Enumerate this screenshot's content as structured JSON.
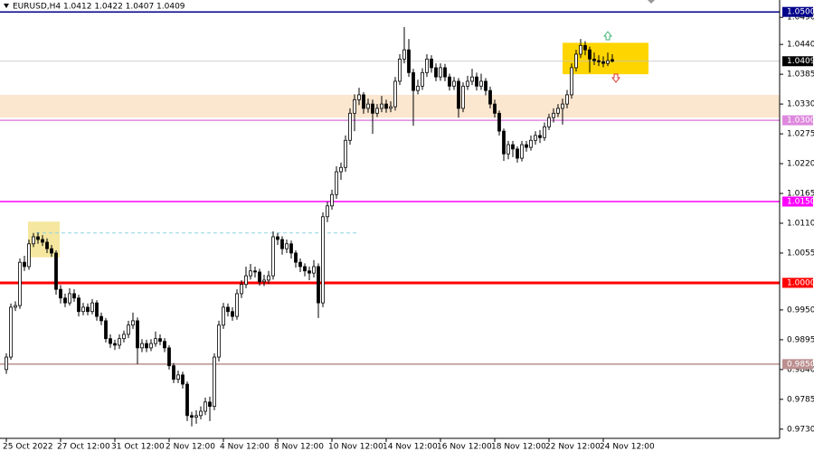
{
  "chart_data": {
    "type": "candlestick",
    "title": "EURUSD,H4  1.0412 1.0422 1.0407 1.0409",
    "ylim": [
      0.9713,
      1.0522
    ],
    "yticks": [
      {
        "value": 1.049,
        "label": "1.0490"
      },
      {
        "value": 1.044,
        "label": "1.0440"
      },
      {
        "value": 1.0385,
        "label": "1.0385"
      },
      {
        "value": 1.033,
        "label": "1.0330"
      },
      {
        "value": 1.0275,
        "label": "1.0275"
      },
      {
        "value": 1.022,
        "label": "1.0220"
      },
      {
        "value": 1.0165,
        "label": "1.0165"
      },
      {
        "value": 1.011,
        "label": "1.0110"
      },
      {
        "value": 1.0055,
        "label": "1.0055"
      },
      {
        "value": 0.995,
        "label": "0.9950"
      },
      {
        "value": 0.9895,
        "label": "0.9895"
      },
      {
        "value": 0.984,
        "label": "0.9840"
      },
      {
        "value": 0.9785,
        "label": "0.9785"
      },
      {
        "value": 0.973,
        "label": "0.9730"
      }
    ],
    "categories": [
      "25 Oct 2022",
      null,
      null,
      null,
      null,
      null,
      null,
      null,
      null,
      null,
      null,
      null,
      "27 Oct 12:00",
      null,
      null,
      null,
      null,
      null,
      null,
      null,
      null,
      null,
      null,
      null,
      "31 Oct 12:00",
      null,
      null,
      null,
      null,
      null,
      null,
      null,
      null,
      null,
      null,
      null,
      "2 Nov 12:00",
      null,
      null,
      null,
      null,
      null,
      null,
      null,
      null,
      null,
      null,
      null,
      "4 Nov 12:00",
      null,
      null,
      null,
      null,
      null,
      null,
      null,
      null,
      null,
      null,
      null,
      "8 Nov 12:00",
      null,
      null,
      null,
      null,
      null,
      null,
      null,
      null,
      null,
      null,
      null,
      "10 Nov 12:00",
      null,
      null,
      null,
      null,
      null,
      null,
      null,
      null,
      null,
      null,
      null,
      "14 Nov 12:00",
      null,
      null,
      null,
      null,
      null,
      null,
      null,
      null,
      null,
      null,
      null,
      "16 Nov 12:00",
      null,
      null,
      null,
      null,
      null,
      null,
      null,
      null,
      null,
      null,
      null,
      "18 Nov 12:00",
      null,
      null,
      null,
      null,
      null,
      null,
      null,
      null,
      null,
      null,
      null,
      "22 Nov 12:00",
      null,
      null,
      null,
      null,
      null,
      null,
      null,
      null,
      null,
      null,
      null,
      "24 Nov 12:00",
      null,
      null
    ],
    "ohlc": [
      [
        0.984,
        0.987,
        0.9832,
        0.9863
      ],
      [
        0.9863,
        0.9962,
        0.9858,
        0.9955
      ],
      [
        0.9955,
        0.9966,
        0.9948,
        0.9958
      ],
      [
        0.9958,
        1.0045,
        0.9952,
        1.0038
      ],
      [
        1.0038,
        1.005,
        1.0022,
        1.003
      ],
      [
        1.003,
        1.008,
        1.0024,
        1.0072
      ],
      [
        1.0072,
        1.0092,
        1.0066,
        1.0085
      ],
      [
        1.0085,
        1.0093,
        1.0072,
        1.008
      ],
      [
        1.008,
        1.0088,
        1.0068,
        1.0075
      ],
      [
        1.0075,
        1.0082,
        1.0055,
        1.0063
      ],
      [
        1.0063,
        1.007,
        1.0048,
        1.0055
      ],
      [
        1.0055,
        1.006,
        0.9978,
        0.9988
      ],
      [
        0.9988,
        0.9996,
        0.9962,
        0.9972
      ],
      [
        0.9972,
        0.998,
        0.9955,
        0.9963
      ],
      [
        0.9963,
        0.999,
        0.9958,
        0.998
      ],
      [
        0.998,
        0.9988,
        0.9965,
        0.9972
      ],
      [
        0.9972,
        0.9978,
        0.9938,
        0.9947
      ],
      [
        0.9947,
        0.9963,
        0.994,
        0.9955
      ],
      [
        0.9955,
        0.9962,
        0.994,
        0.9947
      ],
      [
        0.9947,
        0.997,
        0.9942,
        0.9963
      ],
      [
        0.9963,
        0.9968,
        0.993,
        0.9938
      ],
      [
        0.9938,
        0.9945,
        0.9922,
        0.993
      ],
      [
        0.993,
        0.9935,
        0.989,
        0.9897
      ],
      [
        0.9897,
        0.9905,
        0.988,
        0.9888
      ],
      [
        0.9888,
        0.9895,
        0.9876,
        0.9885
      ],
      [
        0.9885,
        0.9905,
        0.9878,
        0.9897
      ],
      [
        0.9897,
        0.9912,
        0.989,
        0.9905
      ],
      [
        0.9905,
        0.993,
        0.9898,
        0.9922
      ],
      [
        0.9922,
        0.9945,
        0.9915,
        0.993
      ],
      [
        0.993,
        0.9936,
        0.985,
        0.988
      ],
      [
        0.988,
        0.9896,
        0.9872,
        0.9888
      ],
      [
        0.9888,
        0.9895,
        0.9872,
        0.988
      ],
      [
        0.988,
        0.9896,
        0.9874,
        0.9888
      ],
      [
        0.9888,
        0.991,
        0.9882,
        0.9897
      ],
      [
        0.9897,
        0.9905,
        0.9885,
        0.9892
      ],
      [
        0.9892,
        0.9898,
        0.9872,
        0.988
      ],
      [
        0.988,
        0.9885,
        0.984,
        0.9847
      ],
      [
        0.9847,
        0.9852,
        0.9815,
        0.9822
      ],
      [
        0.9822,
        0.9838,
        0.9815,
        0.983
      ],
      [
        0.983,
        0.9836,
        0.9805,
        0.9813
      ],
      [
        0.9813,
        0.9818,
        0.9745,
        0.9755
      ],
      [
        0.9755,
        0.9762,
        0.9735,
        0.9752
      ],
      [
        0.9752,
        0.9765,
        0.974,
        0.9755
      ],
      [
        0.9755,
        0.9772,
        0.9748,
        0.9763
      ],
      [
        0.9763,
        0.9788,
        0.9756,
        0.978
      ],
      [
        0.978,
        0.979,
        0.9745,
        0.9772
      ],
      [
        0.9772,
        0.987,
        0.9765,
        0.9863
      ],
      [
        0.9863,
        0.993,
        0.9855,
        0.9922
      ],
      [
        0.9922,
        0.9963,
        0.9915,
        0.9955
      ],
      [
        0.9955,
        0.9962,
        0.9938,
        0.9947
      ],
      [
        0.9947,
        0.9955,
        0.993,
        0.9938
      ],
      [
        0.9938,
        0.9988,
        0.9932,
        0.998
      ],
      [
        0.998,
        1.0005,
        0.9972,
        0.9997
      ],
      [
        0.9997,
        1.003,
        0.999,
        1.0013
      ],
      [
        1.0013,
        1.0035,
        1.0006,
        1.0022
      ],
      [
        1.0022,
        1.003,
        1.001,
        1.002
      ],
      [
        1.002,
        1.0026,
        0.9995,
        1.0002
      ],
      [
        1.0002,
        1.0015,
        0.9994,
        1.0005
      ],
      [
        1.0005,
        1.0022,
        0.9998,
        1.0013
      ],
      [
        1.0013,
        1.0095,
        1.0006,
        1.0085
      ],
      [
        1.0085,
        1.0092,
        1.007,
        1.008
      ],
      [
        1.008,
        1.0086,
        1.0052,
        1.0063
      ],
      [
        1.0063,
        1.008,
        1.0055,
        1.0072
      ],
      [
        1.0072,
        1.0078,
        1.0045,
        1.0055
      ],
      [
        1.0055,
        1.006,
        1.0028,
        1.0038
      ],
      [
        1.0038,
        1.0045,
        1.002,
        1.003
      ],
      [
        1.003,
        1.0036,
        1.0012,
        1.0022
      ],
      [
        1.0022,
        1.003,
        1.0005,
        1.0018
      ],
      [
        1.0018,
        1.0042,
        1.001,
        1.003
      ],
      [
        1.003,
        1.0036,
        0.9935,
        0.9963
      ],
      [
        0.9963,
        1.013,
        0.9955,
        1.0122
      ],
      [
        1.0122,
        1.015,
        1.0112,
        1.0142
      ],
      [
        1.0142,
        1.0172,
        1.0135,
        1.0163
      ],
      [
        1.0163,
        1.0215,
        1.0155,
        1.0205
      ],
      [
        1.0205,
        1.0222,
        1.019,
        1.0213
      ],
      [
        1.0213,
        1.0272,
        1.0205,
        1.0263
      ],
      [
        1.0263,
        1.0322,
        1.0255,
        1.0313
      ],
      [
        1.0313,
        1.0348,
        1.028,
        1.0338
      ],
      [
        1.0338,
        1.036,
        1.0328,
        1.0347
      ],
      [
        1.0347,
        1.0352,
        1.0312,
        1.0322
      ],
      [
        1.0322,
        1.034,
        1.0314,
        1.033
      ],
      [
        1.033,
        1.0338,
        1.0275,
        1.0313
      ],
      [
        1.0313,
        1.033,
        1.0306,
        1.0322
      ],
      [
        1.0322,
        1.0345,
        1.0315,
        1.033
      ],
      [
        1.033,
        1.0338,
        1.0314,
        1.0322
      ],
      [
        1.0322,
        1.0335,
        1.0315,
        1.0325
      ],
      [
        1.0325,
        1.038,
        1.0318,
        1.0372
      ],
      [
        1.0372,
        1.0422,
        1.0365,
        1.0413
      ],
      [
        1.0413,
        1.0472,
        1.0405,
        1.043
      ],
      [
        1.043,
        1.045,
        1.038,
        1.0388
      ],
      [
        1.0388,
        1.0395,
        1.029,
        1.0355
      ],
      [
        1.0355,
        1.0375,
        1.0348,
        1.0363
      ],
      [
        1.0363,
        1.0396,
        1.0356,
        1.0388
      ],
      [
        1.0388,
        1.0422,
        1.038,
        1.0413
      ],
      [
        1.0413,
        1.042,
        1.0388,
        1.0397
      ],
      [
        1.0397,
        1.0405,
        1.0372,
        1.038
      ],
      [
        1.038,
        1.0405,
        1.0373,
        1.0397
      ],
      [
        1.0397,
        1.0404,
        1.0372,
        1.038
      ],
      [
        1.038,
        1.0386,
        1.0355,
        1.0363
      ],
      [
        1.0363,
        1.038,
        1.0356,
        1.0372
      ],
      [
        1.0372,
        1.0378,
        1.0305,
        1.0322
      ],
      [
        1.0322,
        1.037,
        1.0315,
        1.0363
      ],
      [
        1.0363,
        1.0382,
        1.0356,
        1.0372
      ],
      [
        1.0372,
        1.0395,
        1.0365,
        1.038
      ],
      [
        1.038,
        1.0388,
        1.0355,
        1.0363
      ],
      [
        1.0363,
        1.0386,
        1.0356,
        1.0372
      ],
      [
        1.0372,
        1.0378,
        1.0346,
        1.0355
      ],
      [
        1.0355,
        1.0362,
        1.0322,
        1.033
      ],
      [
        1.033,
        1.0338,
        1.0305,
        1.0313
      ],
      [
        1.0313,
        1.0318,
        1.0272,
        1.028
      ],
      [
        1.028,
        1.0285,
        1.0225,
        1.0238
      ],
      [
        1.0238,
        1.0262,
        1.0228,
        1.0255
      ],
      [
        1.0255,
        1.0262,
        1.0232,
        1.0247
      ],
      [
        1.0247,
        1.0252,
        1.0222,
        1.023
      ],
      [
        1.023,
        1.0262,
        1.0224,
        1.0255
      ],
      [
        1.0255,
        1.0262,
        1.0242,
        1.025
      ],
      [
        1.025,
        1.0272,
        1.0244,
        1.0263
      ],
      [
        1.0263,
        1.028,
        1.0255,
        1.0272
      ],
      [
        1.0272,
        1.0282,
        1.0258,
        1.0268
      ],
      [
        1.0268,
        1.0296,
        1.0262,
        1.0288
      ],
      [
        1.0288,
        1.0312,
        1.0282,
        1.0305
      ],
      [
        1.0305,
        1.0322,
        1.0296,
        1.0313
      ],
      [
        1.0313,
        1.033,
        1.0306,
        1.0322
      ],
      [
        1.0322,
        1.034,
        1.0292,
        1.033
      ],
      [
        1.033,
        1.0356,
        1.0322,
        1.0347
      ],
      [
        1.0347,
        1.0405,
        1.034,
        1.0397
      ],
      [
        1.0397,
        1.043,
        1.039,
        1.0422
      ],
      [
        1.0422,
        1.045,
        1.0415,
        1.0438
      ],
      [
        1.0438,
        1.0446,
        1.042,
        1.043
      ],
      [
        1.043,
        1.0436,
        1.0388,
        1.0413
      ],
      [
        1.0413,
        1.0425,
        1.0402,
        1.041
      ],
      [
        1.041,
        1.042,
        1.04,
        1.0408
      ],
      [
        1.0408,
        1.0418,
        1.0398,
        1.0405
      ],
      [
        1.0405,
        1.0425,
        1.04,
        1.041
      ],
      [
        1.0412,
        1.0422,
        1.0407,
        1.0409
      ]
    ],
    "levels": [
      {
        "value": 1.05,
        "label": "1.0500",
        "color": "#00008b"
      },
      {
        "value": 1.03,
        "label": "1.0300",
        "color": "#dd88dd"
      },
      {
        "value": 1.015,
        "label": "1.0150",
        "color": "#ff00ff"
      },
      {
        "value": 1.0,
        "label": "1.0000",
        "color": "#ff0000"
      },
      {
        "value": 0.985,
        "label": "0.9850",
        "color": "#bc8f8f"
      }
    ],
    "current": {
      "value": 1.0409,
      "label": "1.0409",
      "color": "#c0c0c0"
    },
    "zones": [
      {
        "ylim": [
          1.0305,
          1.0347
        ],
        "color": "#fbe6cf"
      },
      {
        "ylim": [
          1.0047,
          1.0113
        ],
        "color": "#f5e7a0"
      },
      {
        "ylim": [
          1.0385,
          1.0443
        ],
        "color": "#ffd500"
      }
    ],
    "dashed_level": {
      "value": 1.0092,
      "color": "#8fd3e0"
    }
  }
}
